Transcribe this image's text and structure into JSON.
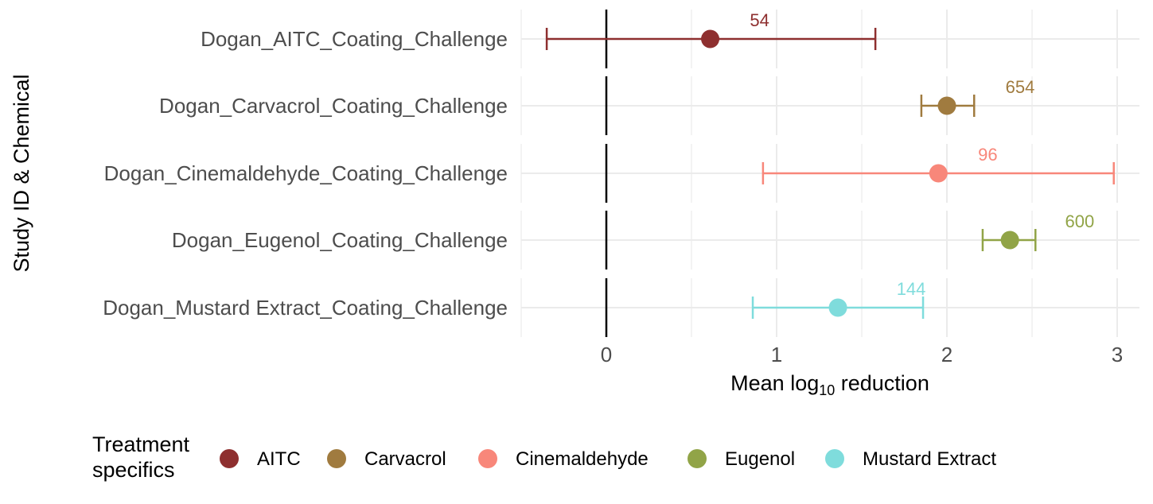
{
  "chart_data": {
    "type": "scatter",
    "subtype": "forest-plot",
    "xlabel_prefix": "Mean log",
    "xlabel_subscript": "10",
    "xlabel_suffix": " reduction",
    "ylabel": "Study ID & Chemical",
    "xlim": [
      -0.5,
      3.15
    ],
    "xticks": [
      0,
      1,
      2,
      3
    ],
    "reference_line": 0,
    "grid": true,
    "legend_title_lines": [
      "Treatment",
      "specifics"
    ],
    "legend_position": "bottom",
    "rows": [
      {
        "study": "Dogan_AITC_Coating_Challenge",
        "treatment": "AITC",
        "mean": 0.61,
        "lower": -0.35,
        "upper": 1.58,
        "label": "54",
        "label_x": 0.9,
        "color": "#8e2f2f"
      },
      {
        "study": "Dogan_Carvacrol_Coating_Challenge",
        "treatment": "Carvacrol",
        "mean": 2.0,
        "lower": 1.85,
        "upper": 2.16,
        "label": "654",
        "label_x": 2.43,
        "color": "#a07b3f"
      },
      {
        "study": "Dogan_Cinemaldehyde_Coating_Challenge",
        "treatment": "Cinemaldehyde",
        "mean": 1.95,
        "lower": 0.92,
        "upper": 2.98,
        "label": "96",
        "label_x": 2.24,
        "color": "#f8877a"
      },
      {
        "study": "Dogan_Eugenol_Coating_Challenge",
        "treatment": "Eugenol",
        "mean": 2.37,
        "lower": 2.21,
        "upper": 2.52,
        "label": "600",
        "label_x": 2.78,
        "color": "#91a447"
      },
      {
        "study": "Dogan_Mustard Extract_Coating_Challenge",
        "treatment": "Mustard Extract",
        "mean": 1.36,
        "lower": 0.86,
        "upper": 1.86,
        "label": "144",
        "label_x": 1.79,
        "color": "#7fdcdc"
      }
    ],
    "legend": [
      {
        "name": "AITC",
        "color": "#8e2f2f"
      },
      {
        "name": "Carvacrol",
        "color": "#a07b3f"
      },
      {
        "name": "Cinemaldehyde",
        "color": "#f8877a"
      },
      {
        "name": "Eugenol",
        "color": "#91a447"
      },
      {
        "name": "Mustard Extract",
        "color": "#7fdcdc"
      }
    ]
  }
}
